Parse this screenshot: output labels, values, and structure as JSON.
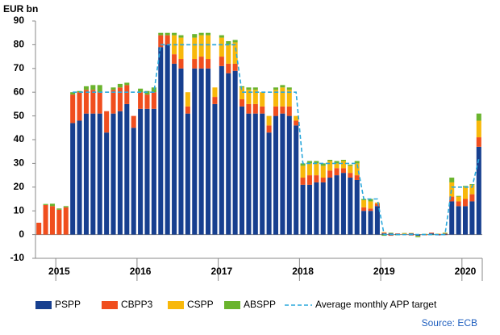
{
  "chart_data": {
    "type": "bar",
    "stacked": true,
    "title": "EUR bn",
    "source": "Source: ECB",
    "categories": [
      null,
      null,
      null,
      "2015",
      null,
      null,
      null,
      null,
      null,
      null,
      null,
      null,
      null,
      null,
      null,
      "2016",
      null,
      null,
      null,
      null,
      null,
      null,
      null,
      null,
      null,
      null,
      null,
      "2017",
      null,
      null,
      null,
      null,
      null,
      null,
      null,
      null,
      null,
      null,
      null,
      "2018",
      null,
      null,
      null,
      null,
      null,
      null,
      null,
      null,
      null,
      null,
      null,
      "2019",
      null,
      null,
      null,
      null,
      null,
      null,
      null,
      null,
      null,
      null,
      null,
      "2020",
      null,
      null
    ],
    "series": [
      {
        "name": "PSPP",
        "color": "#173f8f",
        "values": [
          0,
          0,
          0,
          0,
          0,
          47,
          48,
          51,
          51,
          51,
          43,
          51,
          52,
          55,
          45,
          53,
          53,
          53,
          79,
          80,
          72,
          70,
          51,
          70,
          70,
          70,
          55,
          71,
          68,
          69,
          54,
          51,
          51,
          51,
          43,
          50,
          51,
          50,
          46,
          21,
          21,
          22,
          22,
          24,
          25,
          26,
          24,
          23,
          10,
          10,
          12,
          0.5,
          0.5,
          0.3,
          0,
          0.5,
          -0.5,
          0,
          0.5,
          -0.3,
          0.4,
          14,
          12,
          12,
          14,
          37
        ]
      },
      {
        "name": "CBPP3",
        "color": "#f04e1e",
        "values": [
          5,
          12.5,
          12,
          10.5,
          11.5,
          12,
          12,
          10,
          10,
          9,
          9,
          10,
          10,
          8,
          5,
          7,
          6,
          7,
          5,
          4,
          4,
          4,
          3,
          4,
          5,
          4,
          3,
          4,
          4,
          3,
          3,
          4,
          4,
          3,
          3,
          4,
          3,
          4,
          2,
          3,
          4,
          3,
          2,
          3,
          3,
          2,
          2,
          2,
          1.5,
          1,
          1,
          0.3,
          -0.5,
          0.2,
          0.3,
          -0.4,
          0.2,
          -0.3,
          0.3,
          0.2,
          -0.2,
          2,
          2,
          3,
          3,
          4
        ]
      },
      {
        "name": "CSPP",
        "color": "#f8b80a",
        "values": [
          0,
          0,
          0,
          0,
          0,
          0,
          0,
          0,
          0,
          0,
          0,
          0,
          0,
          0,
          0,
          0,
          0,
          0,
          0,
          0,
          8,
          9,
          6,
          9,
          9,
          10,
          4,
          8,
          8,
          9,
          5,
          6,
          6,
          6,
          4,
          7,
          8,
          7,
          2,
          5,
          5,
          5,
          5,
          4,
          2,
          3,
          3,
          5,
          3,
          3,
          0.5,
          0.2,
          0.1,
          0,
          0.3,
          0.2,
          -0.2,
          0.1,
          0,
          0.2,
          0.3,
          6,
          2,
          5,
          4,
          7
        ]
      },
      {
        "name": "ABSPP",
        "color": "#6ab42d",
        "values": [
          0,
          0.4,
          1,
          0.5,
          0.5,
          1,
          0.5,
          1.5,
          2,
          3,
          0,
          1,
          1.5,
          1,
          0,
          1.5,
          1.5,
          2,
          1,
          1,
          1,
          1,
          0,
          1.5,
          1,
          1,
          0,
          1,
          1.5,
          1,
          0.5,
          1,
          1,
          0,
          0,
          1,
          1,
          1,
          0,
          1,
          1,
          1,
          1,
          0.5,
          1,
          0.5,
          0.5,
          1,
          0.5,
          1,
          0,
          -0.5,
          0.2,
          -0.3,
          0.1,
          0,
          -0.4,
          0.2,
          -0.2,
          0,
          0.1,
          2,
          0.3,
          0.5,
          0.3,
          3
        ]
      },
      {
        "name": "Average monthly APP target",
        "type": "line",
        "dashed": true,
        "color": "#2aa8dc",
        "values": [
          null,
          null,
          null,
          null,
          null,
          60,
          60,
          60,
          60,
          60,
          60,
          60,
          60,
          60,
          60,
          60,
          60,
          60,
          80,
          80,
          80,
          80,
          80,
          80,
          80,
          80,
          80,
          80,
          80,
          80,
          60,
          60,
          60,
          60,
          60,
          60,
          60,
          60,
          60,
          30,
          30,
          30,
          30,
          30,
          30,
          30,
          30,
          30,
          15,
          15,
          15,
          0,
          0,
          0,
          0,
          0,
          0,
          0,
          0,
          0,
          0,
          20,
          20,
          20,
          20,
          32
        ]
      }
    ],
    "ylim": [
      -10,
      90
    ],
    "yticks": [
      -10,
      0,
      10,
      20,
      30,
      40,
      50,
      60,
      70,
      80,
      90
    ],
    "grid": false,
    "legend": "bottom"
  }
}
